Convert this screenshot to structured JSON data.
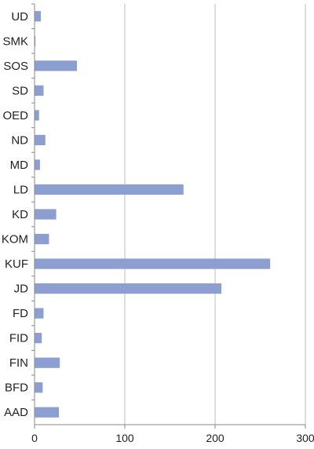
{
  "chart_data": {
    "type": "bar",
    "orientation": "horizontal",
    "categories": [
      "UD",
      "SMK",
      "SOS",
      "SD",
      "OED",
      "ND",
      "MD",
      "LD",
      "KD",
      "KOM",
      "KUF",
      "JD",
      "FD",
      "FID",
      "FIN",
      "BFD",
      "AAD"
    ],
    "values": [
      7,
      1,
      47,
      10,
      5,
      12,
      6,
      165,
      24,
      16,
      261,
      207,
      10,
      8,
      28,
      9,
      27
    ],
    "xlim": [
      0,
      300
    ],
    "xticks": [
      "0",
      "100",
      "200",
      "300"
    ],
    "grid": "vertical",
    "legend": "none",
    "bar_color": "#8c9fd0"
  }
}
